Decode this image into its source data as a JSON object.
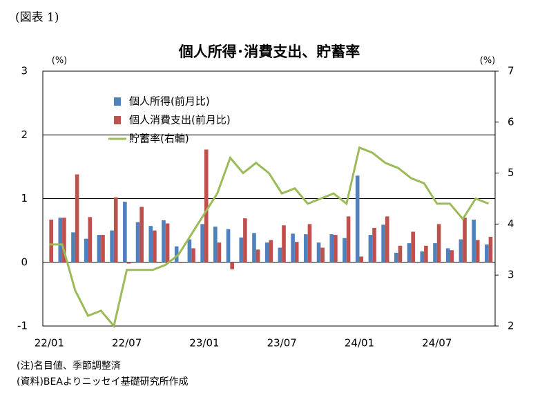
{
  "chart_data": {
    "type": "bar-line",
    "figure_label": "(図表 1)",
    "title": "個人所得･消費支出、貯蓄率",
    "y_unit": "(%)",
    "y2_unit": "(%)",
    "categories": [
      "22/01",
      null,
      null,
      null,
      null,
      null,
      "22/07",
      null,
      null,
      null,
      null,
      null,
      "23/01",
      null,
      null,
      null,
      null,
      null,
      "23/07",
      null,
      null,
      null,
      null,
      null,
      "24/01",
      null,
      null,
      null,
      null,
      null,
      "24/07",
      null,
      null,
      null,
      null
    ],
    "series": [
      {
        "name": "個人所得(前月比)",
        "type": "bar",
        "color": "#4f81bd",
        "values": [
          0.0,
          0.7,
          0.47,
          0.37,
          0.43,
          0.5,
          0.95,
          0.63,
          0.57,
          0.66,
          0.25,
          0.36,
          0.6,
          0.56,
          0.52,
          0.39,
          0.46,
          0.31,
          0.23,
          0.45,
          0.44,
          0.31,
          0.44,
          0.38,
          1.36,
          0.43,
          0.59,
          0.15,
          0.3,
          0.17,
          0.3,
          0.22,
          0.36,
          0.67,
          0.28
        ]
      },
      {
        "name": "個人消費支出(前月比)",
        "type": "bar",
        "color": "#c0504d",
        "values": [
          0.67,
          0.7,
          1.38,
          0.71,
          0.43,
          1.02,
          -0.02,
          0.87,
          0.5,
          0.61,
          -0.01,
          0.22,
          1.77,
          0.31,
          -0.11,
          0.69,
          0.2,
          0.35,
          0.58,
          0.32,
          0.6,
          0.23,
          0.43,
          0.72,
          0.09,
          0.54,
          0.72,
          0.26,
          0.48,
          0.26,
          0.6,
          0.19,
          0.7,
          0.35,
          0.4
        ]
      },
      {
        "name": "貯蓄率(右軸)",
        "type": "line",
        "axis": "y2",
        "color": "#9bbb59",
        "values": [
          3.6,
          3.6,
          2.7,
          2.2,
          2.3,
          2.0,
          3.1,
          3.1,
          3.1,
          3.2,
          3.4,
          3.8,
          4.2,
          4.6,
          5.3,
          5.0,
          5.2,
          5.0,
          4.6,
          4.7,
          4.4,
          4.5,
          4.6,
          4.4,
          5.5,
          5.4,
          5.2,
          5.1,
          4.9,
          4.8,
          4.4,
          4.4,
          4.1,
          4.5,
          4.4
        ]
      }
    ],
    "ylim": [
      -1,
      3
    ],
    "yticks": [
      -1,
      0,
      1,
      2,
      3
    ],
    "y2lim": [
      2,
      7
    ],
    "y2ticks": [
      2,
      3,
      4,
      5,
      6,
      7
    ],
    "grid": true,
    "legend": "upper left",
    "notes": [
      "(注)名目値、季節調整済",
      "(資料)BEAよりニッセイ基礎研究所作成"
    ]
  }
}
